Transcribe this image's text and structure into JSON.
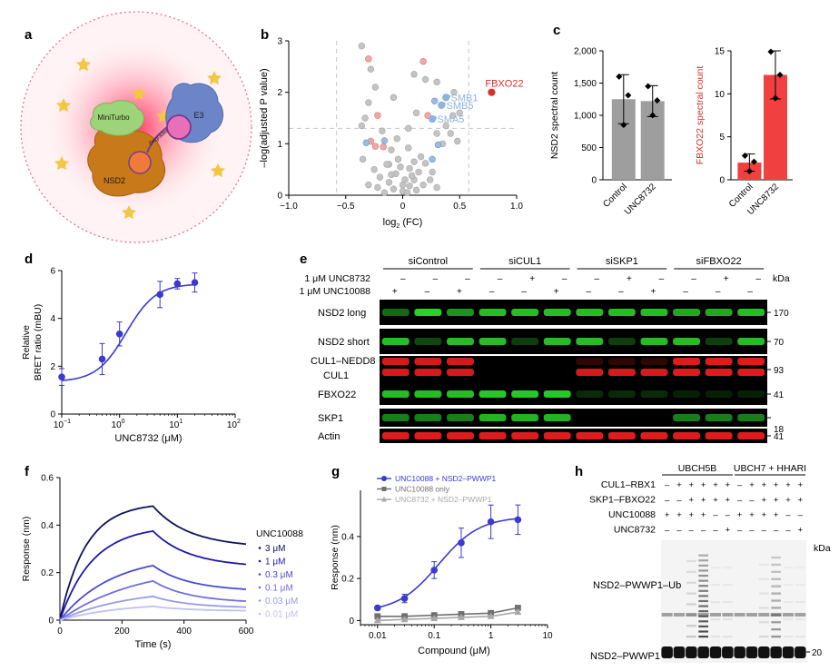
{
  "panels": {
    "a": {
      "letter": "a",
      "labels": {
        "miniturbo": "MiniTurbo",
        "e3": "E3",
        "degrader": "Degrader",
        "nsd2": "NSD2"
      }
    },
    "e": {
      "letter": "e",
      "groups": [
        "siControl",
        "siCUL1",
        "siSKP1",
        "siFBXO22"
      ],
      "treat_labels": [
        "1 μM UNC8732",
        "1 μM UNC10088"
      ],
      "treat_rows": [
        [
          "–",
          "–",
          "–",
          "–",
          "+",
          "–",
          "–",
          "+",
          "–",
          "–",
          "+",
          "–"
        ],
        [
          "+",
          "–",
          "+",
          "–",
          "–",
          "+",
          "–",
          "–",
          "+",
          "–",
          "–",
          "–"
        ]
      ],
      "kda_header": "kDa",
      "blots": [
        {
          "label": "NSD2 long",
          "color": "green",
          "mw": "170"
        },
        {
          "label": "NSD2 short",
          "color": "green",
          "mw": "70"
        },
        {
          "label": "CUL1–NEDD8",
          "label2": "CUL1",
          "color": "red",
          "mw": "93"
        },
        {
          "label": "FBXO22",
          "color": "green",
          "mw": "41"
        },
        {
          "label": "SKP1",
          "color": "green",
          "mw": "18"
        },
        {
          "label": "Actin",
          "color": "red",
          "mw": "41"
        }
      ]
    },
    "h": {
      "letter": "h",
      "groups": [
        "UBCH5B",
        "UBCH7 + HHARI"
      ],
      "row_labels": [
        "CUL1–RBX1",
        "SKP1–FBXO22",
        "UNC10088",
        "UNC8732"
      ],
      "rows": [
        [
          "–",
          "+",
          "+",
          "+",
          "+",
          "+",
          "–",
          "+",
          "+",
          "+",
          "+",
          "+"
        ],
        [
          "–",
          "–",
          "+",
          "+",
          "+",
          "+",
          "–",
          "–",
          "+",
          "+",
          "+",
          "+"
        ],
        [
          "+",
          "+",
          "+",
          "+",
          "–",
          "–",
          "+",
          "+",
          "+",
          "+",
          "–",
          "–"
        ],
        [
          "–",
          "–",
          "–",
          "–",
          "–",
          "+",
          "–",
          "–",
          "–",
          "–",
          "–",
          "+"
        ]
      ],
      "kda_header": "kDa",
      "mw": "20",
      "band_ub": "NSD2–PWWP1–Ub",
      "band_base": "NSD2–PWWP1"
    }
  },
  "chart_data": [
    {
      "panel": "b",
      "letter": "b",
      "type": "scatter",
      "xlabel": "log",
      "xlabel_sub": "2",
      "xlabel_tail": " (FC)",
      "ylabel": "–log(adjusted P value)",
      "xlim": [
        -1.0,
        1.0
      ],
      "ylim": [
        0,
        3
      ],
      "xticks": [
        "−1.0",
        "−0.5",
        "0",
        "0.5",
        "1.0"
      ],
      "yticks": [
        "0",
        "1",
        "2",
        "3"
      ],
      "threshold_y": 1.3,
      "threshold_x": [
        -0.58,
        0.58
      ],
      "highlight": [
        {
          "label": "FBXO22",
          "x": 0.78,
          "y": 2.0,
          "color": "#d9302b"
        },
        {
          "label": "PSMB1",
          "x": 0.38,
          "y": 1.9,
          "color": "#8fb3dd"
        },
        {
          "label": "PSMB5",
          "x": 0.34,
          "y": 1.75,
          "color": "#8fb3dd"
        },
        {
          "label": "PSMA5",
          "x": 0.26,
          "y": 1.48,
          "color": "#8fb3dd"
        }
      ],
      "points_blue": [
        [
          -0.16,
          1.06
        ],
        [
          -0.32,
          1.02
        ],
        [
          0.26,
          0.7
        ],
        [
          0.31,
          0.98
        ],
        [
          0.28,
          1.83
        ]
      ],
      "points_red": [
        [
          -0.3,
          2.65
        ],
        [
          0.18,
          2.6
        ],
        [
          -0.22,
          1.55
        ],
        [
          -0.24,
          0.95
        ],
        [
          -0.17,
          0.94
        ],
        [
          -0.28,
          1.05
        ],
        [
          0.22,
          1.55
        ]
      ],
      "points_grey": [
        [
          -0.36,
          2.9
        ],
        [
          -0.28,
          2.45
        ],
        [
          -0.3,
          1.8
        ],
        [
          -0.24,
          2.1
        ],
        [
          -0.08,
          1.9
        ],
        [
          0.1,
          2.35
        ],
        [
          0.2,
          2.25
        ],
        [
          0.3,
          2.2
        ],
        [
          0.45,
          2.0
        ],
        [
          0.5,
          1.6
        ],
        [
          0.44,
          1.55
        ],
        [
          0.38,
          1.35
        ],
        [
          0.42,
          1.2
        ],
        [
          0.3,
          1.2
        ],
        [
          0.48,
          1.05
        ],
        [
          0.35,
          1.0
        ],
        [
          0.12,
          1.6
        ],
        [
          0.05,
          1.3
        ],
        [
          -0.05,
          1.1
        ],
        [
          -0.36,
          1.35
        ],
        [
          -0.33,
          1.5
        ],
        [
          -0.18,
          1.25
        ],
        [
          -0.1,
          0.88
        ],
        [
          0.05,
          0.92
        ],
        [
          0.1,
          0.65
        ],
        [
          -0.35,
          0.7
        ],
        [
          -0.12,
          0.6
        ],
        [
          -0.25,
          0.5
        ],
        [
          -0.3,
          0.2
        ],
        [
          -0.2,
          0.35
        ],
        [
          -0.12,
          0.25
        ],
        [
          -0.06,
          0.42
        ],
        [
          -0.02,
          0.55
        ],
        [
          0.02,
          0.3
        ],
        [
          0.06,
          0.52
        ],
        [
          0.1,
          0.3
        ],
        [
          0.14,
          0.45
        ],
        [
          0.18,
          0.2
        ],
        [
          -0.16,
          0.05
        ],
        [
          -0.08,
          0.12
        ],
        [
          0.0,
          0.08
        ],
        [
          0.06,
          0.18
        ],
        [
          0.12,
          0.1
        ],
        [
          0.2,
          0.62
        ],
        [
          0.24,
          0.3
        ],
        [
          0.16,
          0.75
        ],
        [
          -0.04,
          0.7
        ],
        [
          0.0,
          0.2
        ],
        [
          0.04,
          0.05
        ],
        [
          -0.1,
          0.4
        ],
        [
          -0.22,
          0.15
        ],
        [
          0.08,
          0.38
        ],
        [
          0.26,
          0.45
        ],
        [
          -0.14,
          0.6
        ],
        [
          0.3,
          0.15
        ]
      ]
    },
    {
      "panel": "c1",
      "letter": "c",
      "type": "bar",
      "ylabel": "NSD2 spectral count",
      "ylabel_color": "#000000",
      "categories": [
        "Control",
        "UNC8732"
      ],
      "values": [
        1250,
        1220
      ],
      "errors": [
        380,
        240
      ],
      "points": [
        [
          1600,
          1310,
          850
        ],
        [
          1450,
          1230,
          1000
        ]
      ],
      "bar_color": "#9e9e9e",
      "ylim": [
        0,
        2000
      ],
      "yticks": [
        "0",
        "500",
        "1,000",
        "1,500",
        "2,000"
      ]
    },
    {
      "panel": "c2",
      "letter": "",
      "type": "bar",
      "ylabel": "FBXO22 spectral count",
      "ylabel_color": "#d9302b",
      "categories": [
        "Control",
        "UNC8732"
      ],
      "values": [
        2,
        12.2
      ],
      "errors": [
        1,
        2.8
      ],
      "points": [
        [
          2.8,
          2.1,
          1.0
        ],
        [
          14.9,
          12.2,
          9.5
        ]
      ],
      "bar_color": "#f04040",
      "ylim": [
        0,
        15
      ],
      "yticks": [
        "0",
        "5",
        "10",
        "15"
      ]
    },
    {
      "panel": "d",
      "letter": "d",
      "type": "line",
      "xlabel": "UNC8732 (μM)",
      "ylabel_lines": [
        "Relative",
        "BRET ratio (mBU)"
      ],
      "x_log": true,
      "xlim": [
        0.1,
        100
      ],
      "ylim": [
        0,
        6
      ],
      "xticks": [
        "10",
        "10",
        "10",
        "10"
      ],
      "xtick_exp": [
        "−1",
        "0",
        "1",
        "2"
      ],
      "yticks": [
        "0",
        "2",
        "4",
        "6"
      ],
      "x": [
        0.1,
        0.5,
        1,
        5,
        10,
        20
      ],
      "y": [
        1.55,
        2.3,
        3.35,
        5.0,
        5.45,
        5.5
      ],
      "err": [
        0.35,
        0.65,
        0.5,
        0.55,
        0.22,
        0.4
      ],
      "fit": {
        "bottom": 1.35,
        "top": 5.45,
        "ec50": 1.3,
        "hill": 1.7
      },
      "color": "#3a3ad0"
    },
    {
      "panel": "f",
      "letter": "f",
      "type": "line",
      "xlabel": "Time (s)",
      "ylabel": "Response (nm)",
      "xlim": [
        0,
        600
      ],
      "ylim": [
        0,
        0.6
      ],
      "xticks": [
        "0",
        "200",
        "400",
        "600"
      ],
      "yticks": [
        "0",
        "0.2",
        "0.4",
        "0.6"
      ],
      "legend_title": "UNC10088",
      "series": [
        {
          "name": "3 μM",
          "peak": 0.48,
          "end": 0.32,
          "k": 0.012,
          "color": "#101060"
        },
        {
          "name": "1 μM",
          "peak": 0.375,
          "end": 0.235,
          "k": 0.0095,
          "color": "#1a1aa8"
        },
        {
          "name": "0.3 μM",
          "peak": 0.23,
          "end": 0.13,
          "k": 0.006,
          "color": "#4a4ad8"
        },
        {
          "name": "0.1 μM",
          "peak": 0.165,
          "end": 0.08,
          "k": 0.004,
          "color": "#6f6fe0"
        },
        {
          "name": "0.03 μM",
          "peak": 0.1,
          "end": 0.055,
          "k": 0.0045,
          "color": "#9a9ae8"
        },
        {
          "name": "0.01 μM",
          "peak": 0.058,
          "end": 0.04,
          "k": 0.005,
          "color": "#c0c0f0"
        }
      ]
    },
    {
      "panel": "g",
      "letter": "g",
      "type": "line",
      "xlabel": "Compound (μM)",
      "ylabel": "Response (nm)",
      "x_log": true,
      "xlim": [
        0.005,
        10
      ],
      "ylim": [
        -0.02,
        0.62
      ],
      "xticks": [
        "0.01",
        "0.1",
        "1",
        "10"
      ],
      "yticks": [
        "0",
        "0.2",
        "0.4"
      ],
      "x": [
        0.01,
        0.03,
        0.1,
        0.3,
        1,
        3
      ],
      "series": [
        {
          "name": "UNC10088 + NSD2–PWWP1",
          "y": [
            0.06,
            0.105,
            0.24,
            0.37,
            0.47,
            0.48
          ],
          "err": [
            0.01,
            0.02,
            0.04,
            0.07,
            0.08,
            0.07
          ],
          "color": "#3a3ad0",
          "marker": "circle",
          "fit": {
            "bottom": 0.04,
            "top": 0.495,
            "ec50": 0.12,
            "hill": 1.2
          }
        },
        {
          "name": "UNC10088 only",
          "y": [
            0.02,
            0.02,
            0.025,
            0.03,
            0.035,
            0.06
          ],
          "err": [
            0.005,
            0.005,
            0.005,
            0.005,
            0.005,
            0.01
          ],
          "color": "#707070",
          "marker": "square"
        },
        {
          "name": "UNC8732 + NSD2–PWWP1",
          "y": [
            0.0,
            0.005,
            0.01,
            0.015,
            0.02,
            0.04
          ],
          "err": [
            0.005,
            0.005,
            0.005,
            0.005,
            0.005,
            0.01
          ],
          "color": "#a8a8a8",
          "marker": "triangle"
        }
      ]
    }
  ]
}
